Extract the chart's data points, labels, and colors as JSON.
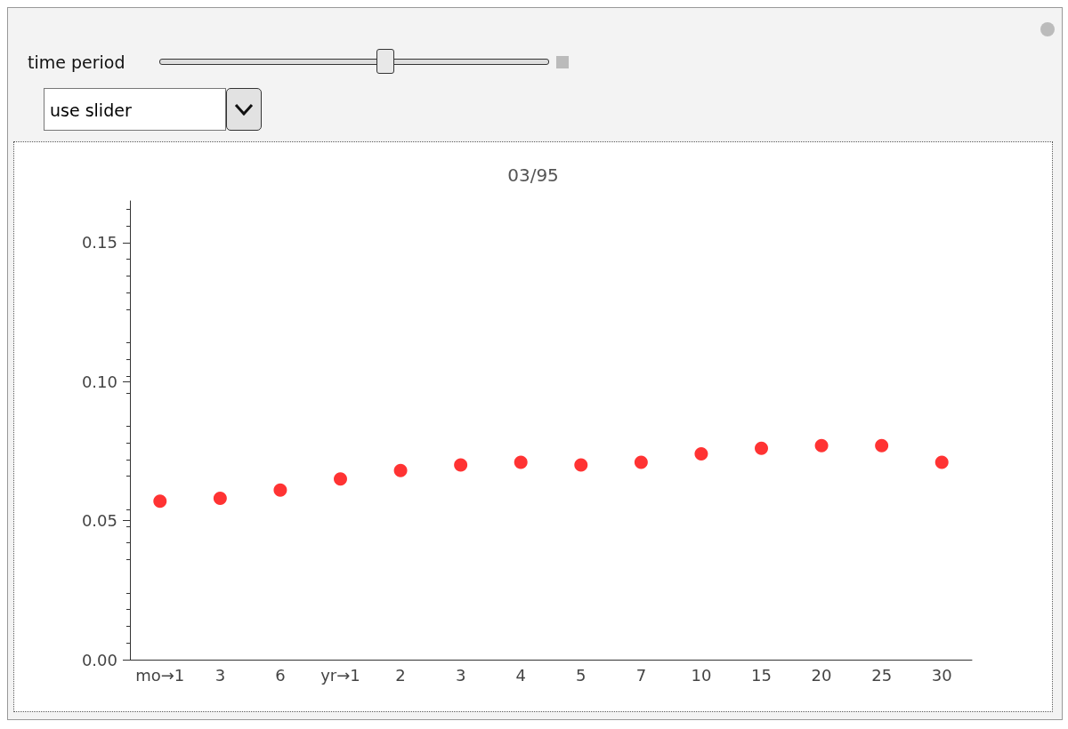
{
  "chart_data": {
    "type": "scatter",
    "title": "03/95",
    "annotations": [
      "time period",
      "use slider"
    ],
    "categories": [
      "mo→1",
      "3",
      "6",
      "yr→1",
      "2",
      "3",
      "4",
      "5",
      "7",
      "10",
      "15",
      "20",
      "25",
      "30"
    ],
    "series": [
      {
        "color": "#ff0000",
        "values": [
          0.057,
          0.058,
          0.061,
          0.065,
          0.068,
          0.07,
          0.071,
          0.07,
          0.071,
          0.074,
          0.076,
          0.077,
          0.077,
          0.071
        ]
      }
    ],
    "ylim": [
      0,
      0.165
    ],
    "yticks": [
      {
        "value": 0,
        "label": "0.00"
      },
      {
        "value": 0.05,
        "label": "0.05"
      },
      {
        "value": 0.1,
        "label": "0.10"
      },
      {
        "value": 0.15,
        "label": "0.15"
      }
    ],
    "marker": "circle"
  }
}
